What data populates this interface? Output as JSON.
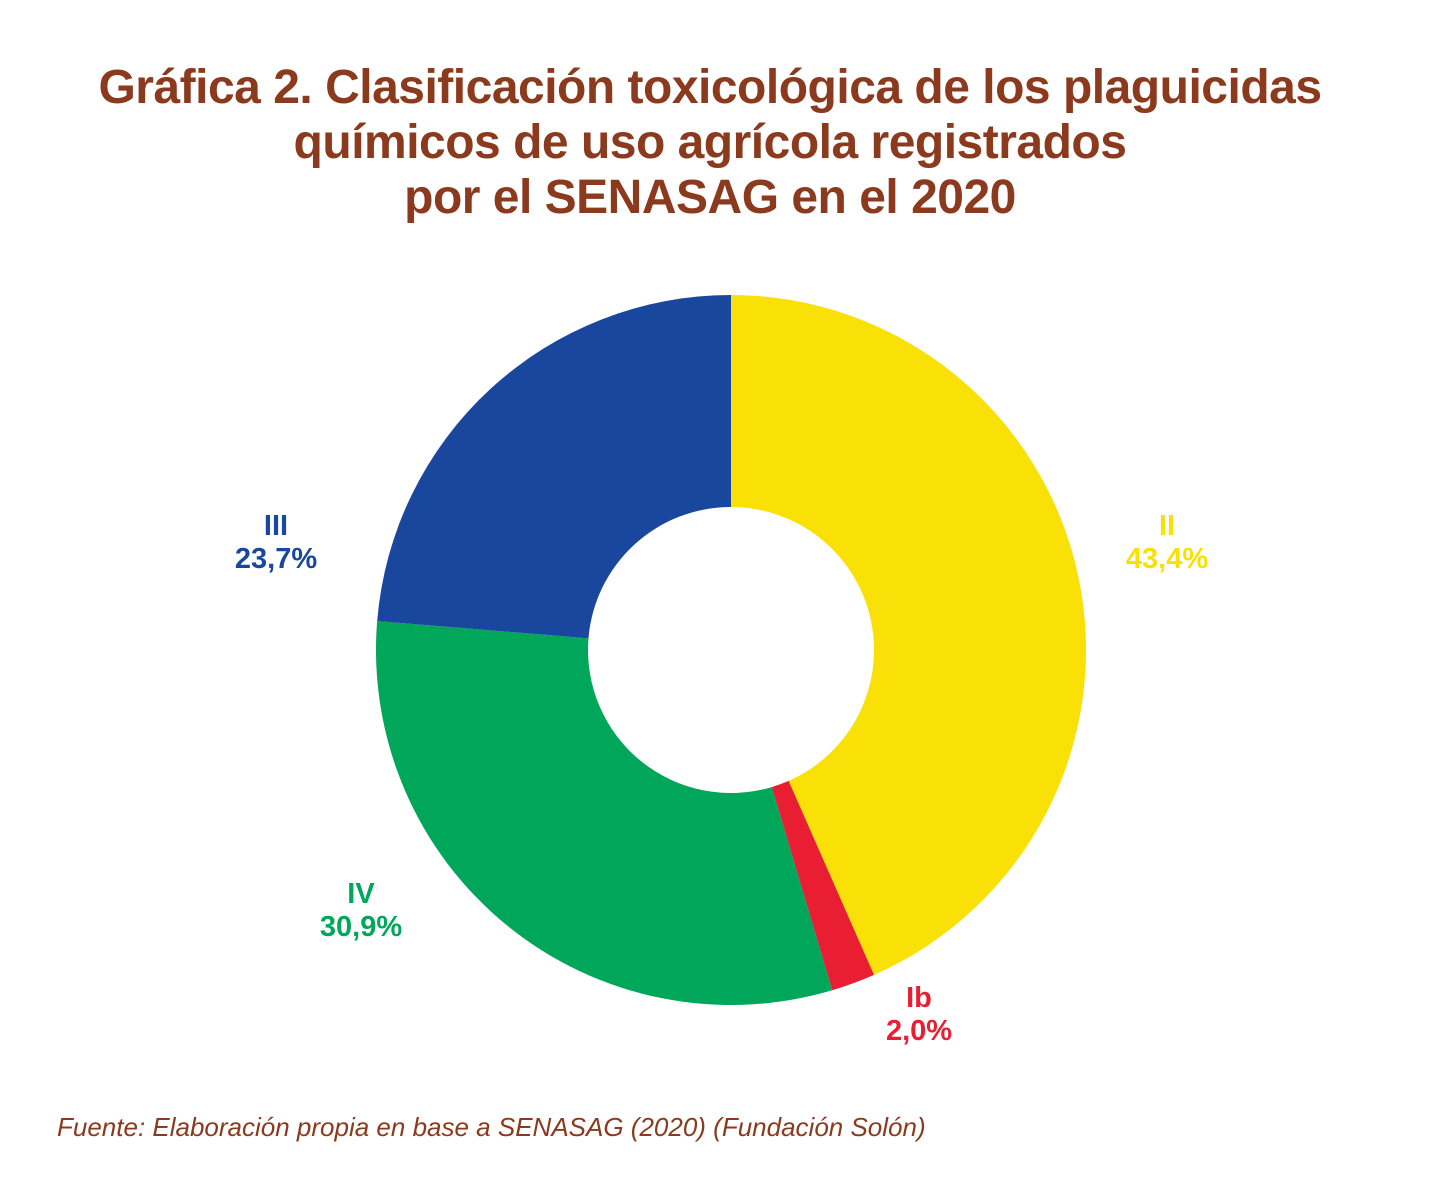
{
  "chart_data": {
    "type": "pie",
    "variant": "donut",
    "title": [
      "Gráfica 2. Clasificación toxicológica de los plaguicidas",
      "químicos de uso agrícola registrados",
      "por el SENASAG en el 2020"
    ],
    "start": "top",
    "direction": "clockwise",
    "slices": [
      {
        "label": "II",
        "value": 43.4,
        "display": "43,4%",
        "color": "#F9E006"
      },
      {
        "label": "Ib",
        "value": 2.0,
        "display": "2,0%",
        "color": "#E91E33"
      },
      {
        "label": "IV",
        "value": 30.9,
        "display": "30,9%",
        "color": "#00A65A"
      },
      {
        "label": "III",
        "value": 23.7,
        "display": "23,7%",
        "color": "#1A479E"
      }
    ],
    "source": "Fuente: Elaboración propia en base a SENASAG (2020) (Fundación Solón)"
  }
}
